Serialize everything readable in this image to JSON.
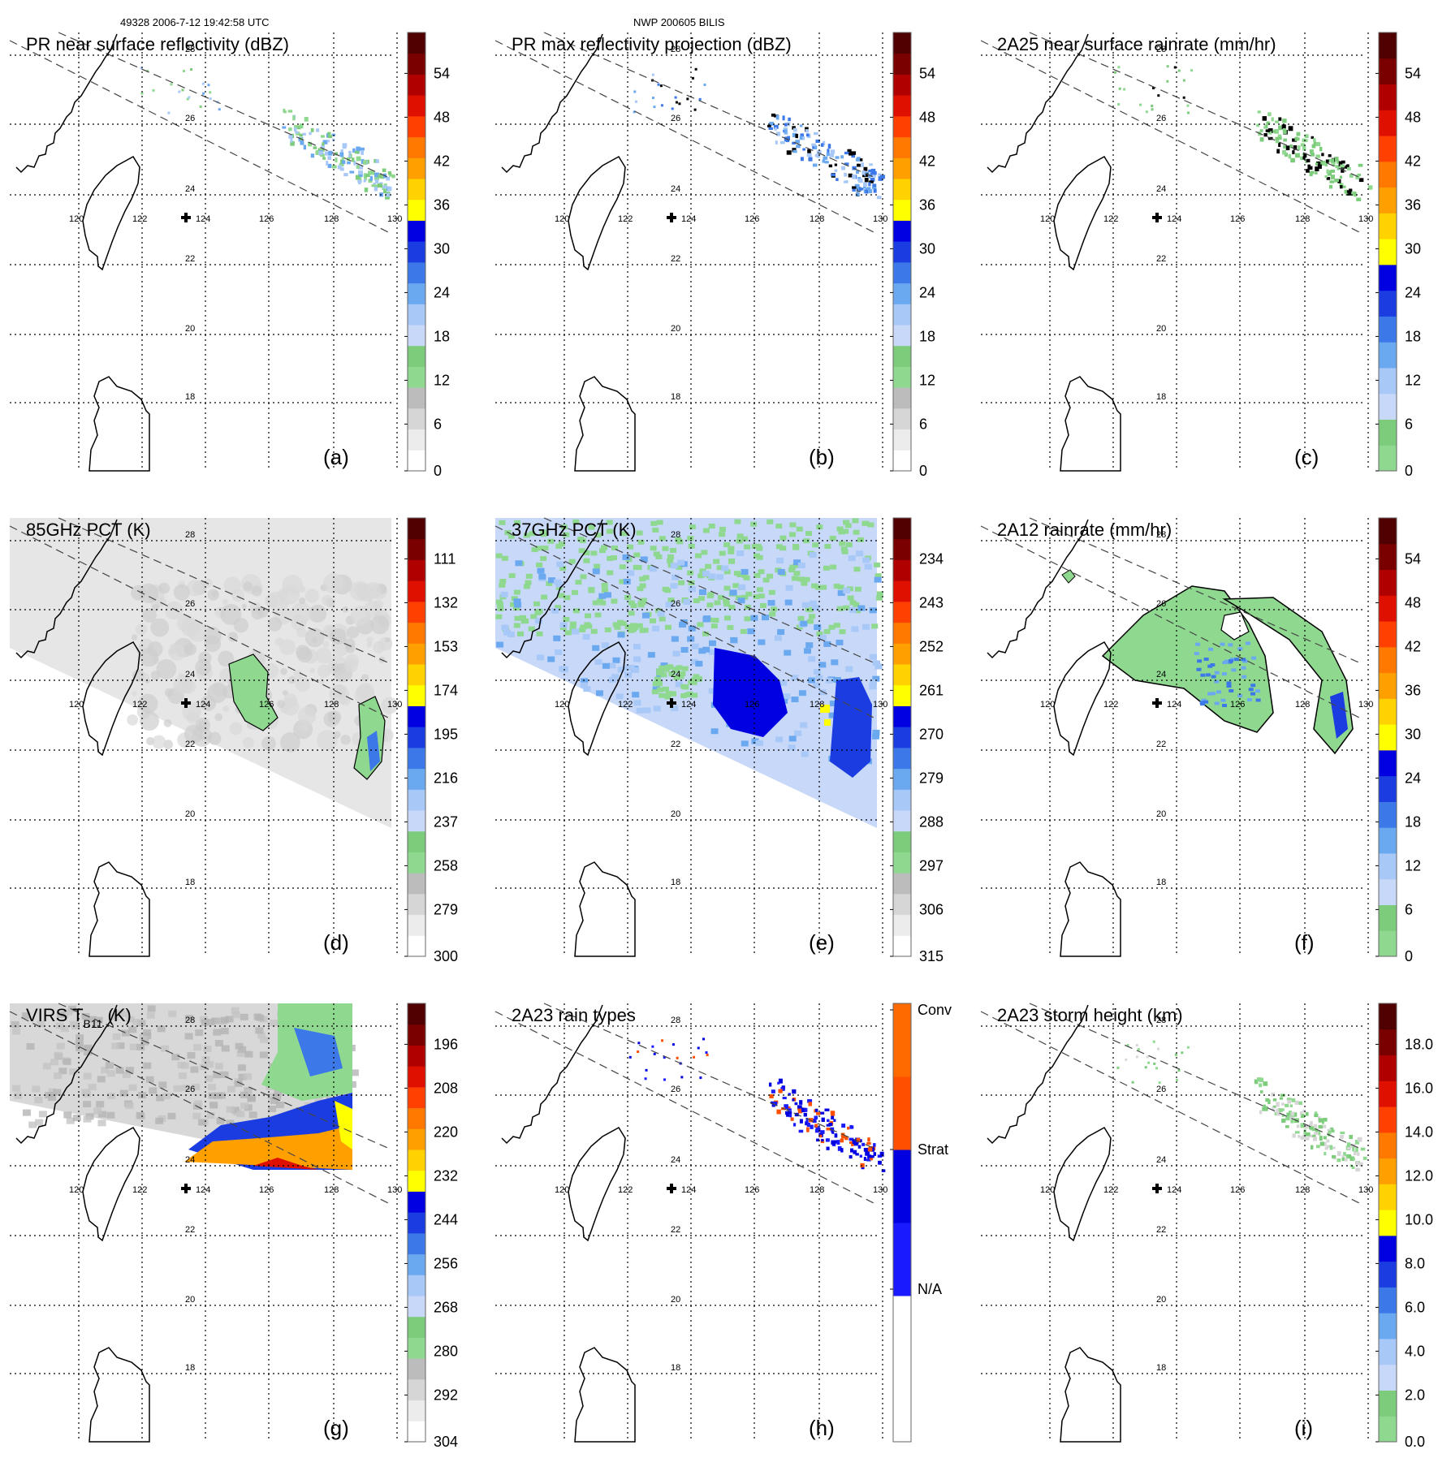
{
  "header": {
    "left": "49328 2006-7-12 19:42:58 UTC",
    "center": "NWP 200605 BILIS"
  },
  "lon_labels": [
    "120",
    "122",
    "124",
    "126",
    "128",
    "130"
  ],
  "lat_labels": [
    "28",
    "26",
    "24",
    "22",
    "20",
    "18"
  ],
  "palettes": {
    "reflectivity": [
      "#ffffff",
      "#ececec",
      "#d6d6d6",
      "#bcbcbc",
      "#8fd88f",
      "#7ccc7c",
      "#c8d8f8",
      "#a8c8f8",
      "#6aa8f0",
      "#3c78e8",
      "#1a3ce0",
      "#0000e0",
      "#ffff00",
      "#ffd200",
      "#ffa000",
      "#ff7800",
      "#ff4000",
      "#e01000",
      "#b00000",
      "#7a0000",
      "#500000"
    ],
    "pct": [
      "#ffffff",
      "#ececec",
      "#d6d6d6",
      "#bcbcbc",
      "#8fd88f",
      "#7ccc7c",
      "#c8d8f8",
      "#a8c8f8",
      "#6aa8f0",
      "#3c78e8",
      "#1a3ce0",
      "#0000e0",
      "#ffff00",
      "#ffd200",
      "#ffa000",
      "#ff7800",
      "#ff4000",
      "#e01000",
      "#b00000",
      "#7a0000",
      "#500000"
    ],
    "rainrate": [
      "#8fd88f",
      "#7ccc7c",
      "#c8d8f8",
      "#a8c8f8",
      "#6aa8f0",
      "#3c78e8",
      "#1a3ce0",
      "#0000e0",
      "#ffff00",
      "#ffd200",
      "#ffa000",
      "#ff7800",
      "#ff4000",
      "#e01000",
      "#b00000",
      "#7a0000",
      "#500000"
    ],
    "raintype": [
      "#ffffff",
      "#ffffff",
      "#1a1aff",
      "#0000e0",
      "#ff5000",
      "#ff6a00"
    ]
  },
  "panels": [
    {
      "id": "a",
      "label": "(a)",
      "title": "PR near surface reflectivity (dBZ)",
      "palette": "reflectivity",
      "cb_ticks": [
        "54",
        "48",
        "42",
        "36",
        "30",
        "24",
        "18",
        "12",
        "6",
        "0"
      ]
    },
    {
      "id": "b",
      "label": "(b)",
      "title": "PR max reflectivity projection (dBZ)",
      "palette": "reflectivity",
      "cb_ticks": [
        "54",
        "48",
        "42",
        "36",
        "30",
        "24",
        "18",
        "12",
        "6",
        "0"
      ]
    },
    {
      "id": "c",
      "label": "(c)",
      "title": "2A25 near surface rainrate (mm/hr)",
      "palette": "rainrate",
      "cb_ticks": [
        "54",
        "48",
        "42",
        "36",
        "30",
        "24",
        "18",
        "12",
        "6",
        "0"
      ]
    },
    {
      "id": "d",
      "label": "(d)",
      "title": "85GHz PCT (K)",
      "palette": "pct",
      "cb_ticks": [
        "111",
        "132",
        "153",
        "174",
        "195",
        "216",
        "237",
        "258",
        "279",
        "300"
      ]
    },
    {
      "id": "e",
      "label": "(e)",
      "title": "37GHz PCT (K)",
      "palette": "pct",
      "cb_ticks": [
        "234",
        "243",
        "252",
        "261",
        "270",
        "279",
        "288",
        "297",
        "306",
        "315"
      ]
    },
    {
      "id": "f",
      "label": "(f)",
      "title": "2A12 rainrate (mm/hr)",
      "palette": "rainrate",
      "cb_ticks": [
        "54",
        "48",
        "42",
        "36",
        "30",
        "24",
        "18",
        "12",
        "6",
        "0"
      ]
    },
    {
      "id": "g",
      "label": "(g)",
      "title": "VIRS T",
      "title_sub": "B11",
      "title_suffix": " (K)",
      "palette": "pct",
      "cb_ticks": [
        "196",
        "208",
        "220",
        "232",
        "244",
        "256",
        "268",
        "280",
        "292",
        "304"
      ]
    },
    {
      "id": "h",
      "label": "(h)",
      "title": "2A23 rain types",
      "palette": "raintype",
      "cb_ticks": [
        "Conv",
        "Strat",
        "N/A"
      ]
    },
    {
      "id": "i",
      "label": "(i)",
      "title": "2A23 storm height (km)",
      "palette": "rainrate",
      "cb_ticks": [
        "18.0",
        "16.0",
        "14.0",
        "12.0",
        "10.0",
        "8.0",
        "6.0",
        "4.0",
        "2.0",
        "0.0"
      ]
    }
  ]
}
